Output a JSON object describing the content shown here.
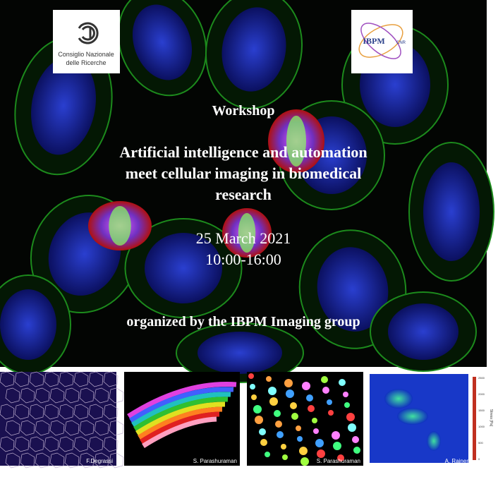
{
  "logos": {
    "cnr": {
      "lines": [
        "Consiglio Nazionale",
        "delle Ricerche"
      ]
    },
    "ibpm": {
      "name": "IBPM",
      "suffix": "CNR"
    }
  },
  "event": {
    "kind": "Workshop",
    "title_lines": [
      "Artificial intelligence and automation",
      "meet cellular imaging in biomedical",
      "research"
    ],
    "date": "25 March 2021",
    "time": "10:00-16:00",
    "organizer": "organized by the IBPM Imaging group"
  },
  "panels": [
    {
      "credit": "F.Degrassi"
    },
    {
      "credit": "S. Parashuraman"
    },
    {
      "credit": "S. Parashuraman"
    },
    {
      "credit": "A. Rainer",
      "colorbar": {
        "label": "Stress [Pa]",
        "ticks": [
          "2500",
          "2000",
          "1500",
          "1000",
          "500",
          "0"
        ]
      }
    }
  ]
}
